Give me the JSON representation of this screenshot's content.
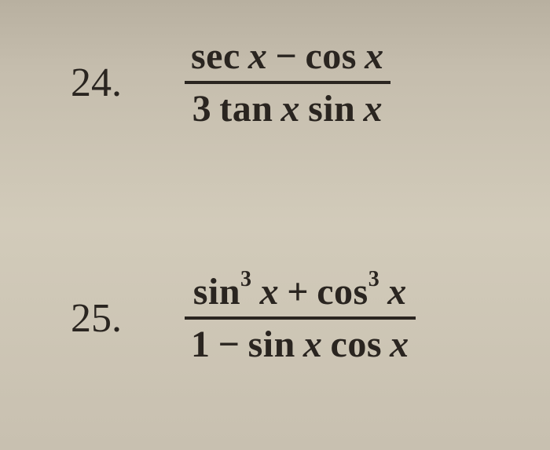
{
  "problems": [
    {
      "number": "24.",
      "numerator_html": "sec <i>x</i> − cos <i>x</i>",
      "denominator_html": "3 tan <i>x</i> sin <i>x</i>"
    },
    {
      "number": "25.",
      "numerator_html": "sin<sup>3</sup> <i>x</i> + cos<sup>3</sup> <i>x</i>",
      "denominator_html": "1 − sin <i>x</i> cos <i>x</i>"
    }
  ],
  "colors": {
    "text": "#2a2520",
    "bg_top": "#b8b0a0",
    "bg_mid": "#d2cbba",
    "bg_bot": "#c8c0b0"
  },
  "typography": {
    "number_fontsize": 52,
    "expr_fontsize": 48,
    "sup_fontsize": 28,
    "font_family": "Times New Roman"
  }
}
